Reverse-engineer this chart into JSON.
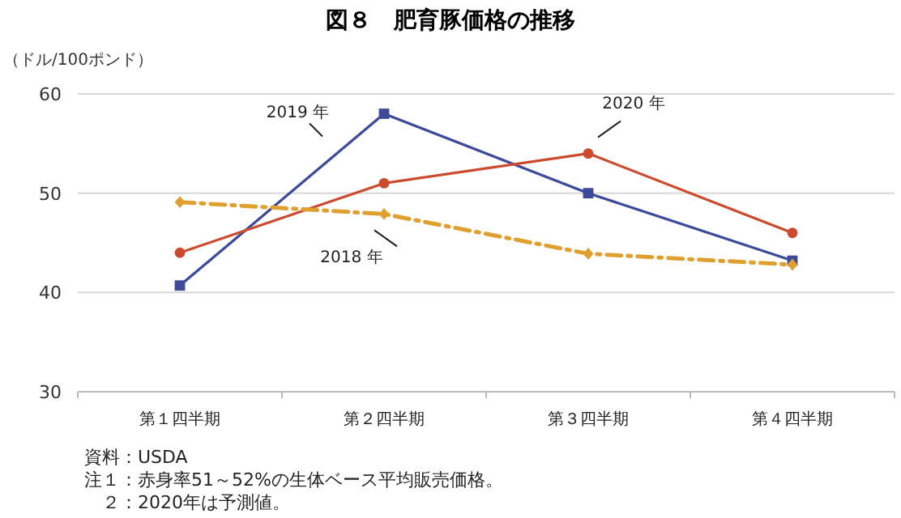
{
  "chart_data": {
    "type": "line",
    "title": "図８　肥育豚価格の推移",
    "ylabel": "（ドル/100ポンド）",
    "categories": [
      "第１四半期",
      "第２四半期",
      "第３四半期",
      "第４四半期"
    ],
    "series": [
      {
        "name": "2019 年",
        "color": "#3d4a9a",
        "marker": "square",
        "line_style": "solid",
        "values": [
          40.7,
          58,
          50,
          43.2
        ]
      },
      {
        "name": "2020 年",
        "color": "#cc4a2e",
        "marker": "circle",
        "line_style": "solid",
        "values": [
          44,
          51,
          54,
          46
        ]
      },
      {
        "name": "2018 年",
        "color": "#e0a030",
        "marker": "diamond",
        "line_style": "dashed",
        "values": [
          49.1,
          47.9,
          43.9,
          42.8
        ]
      }
    ],
    "ylim": [
      30,
      60
    ],
    "yticks": [
      30,
      40,
      50,
      60
    ],
    "grid": "y",
    "legend": false,
    "annotations": [
      "資料：USDA",
      "注１：赤身率51～52%の生体ベース平均販売価格。",
      "　２：2020年は予測値。"
    ]
  }
}
